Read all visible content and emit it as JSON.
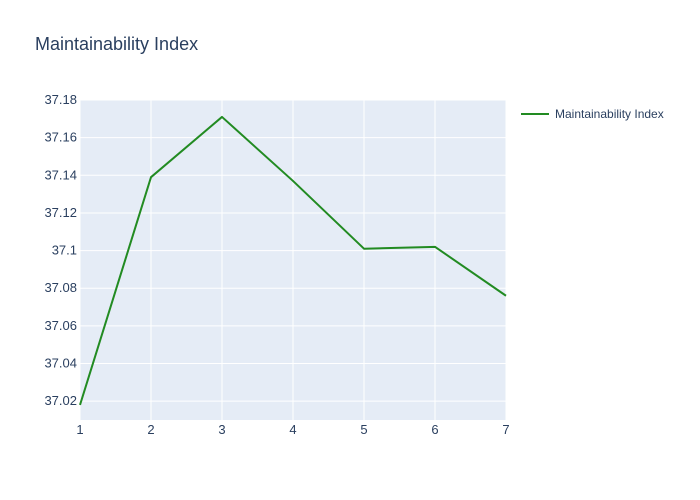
{
  "chart_data": {
    "type": "line",
    "title": "Maintainability Index",
    "x": [
      1,
      2,
      3,
      4,
      5,
      6,
      7
    ],
    "series": [
      {
        "name": "Maintainability Index",
        "values": [
          37.018,
          37.139,
          37.171,
          37.137,
          37.101,
          37.102,
          37.076
        ],
        "color": "#228b22"
      }
    ],
    "xlim": [
      1,
      7
    ],
    "ylim": [
      37.01,
      37.18
    ],
    "x_ticks": [
      "1",
      "2",
      "3",
      "4",
      "5",
      "6",
      "7"
    ],
    "y_ticks": [
      {
        "value": 37.02,
        "label": "37.02"
      },
      {
        "value": 37.04,
        "label": "37.04"
      },
      {
        "value": 37.06,
        "label": "37.06"
      },
      {
        "value": 37.08,
        "label": "37.08"
      },
      {
        "value": 37.1,
        "label": "37.1"
      },
      {
        "value": 37.12,
        "label": "37.12"
      },
      {
        "value": 37.14,
        "label": "37.14"
      },
      {
        "value": 37.16,
        "label": "37.16"
      },
      {
        "value": 37.18,
        "label": "37.18"
      }
    ],
    "grid": true,
    "legend_position": "top-right",
    "colors": {
      "plot_background": "#e5ecf6",
      "grid": "#ffffff",
      "text": "#2a3f5f"
    }
  }
}
